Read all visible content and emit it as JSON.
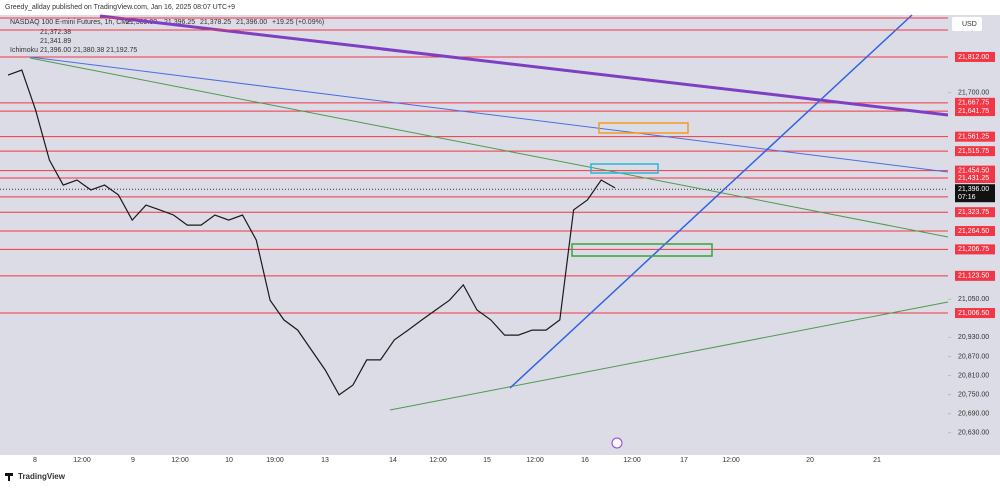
{
  "header": {
    "publisher": "Greedy_allday published on TradingView.com, Jan 16, 2025 08:07 UTC+9",
    "brand": "TradingView"
  },
  "legend": {
    "open": "21,389.00",
    "high": "21,396.25",
    "low": "21,378.25",
    "close": "21,396.00",
    "change": "+19.25 (+0.09%)",
    "ma1": "21,372.38",
    "ma2": "21,341.89",
    "ichimoku": "Ichimoku",
    "ichimoku_values": "21,396.00  21,380.38  21,192.75"
  },
  "chart_data": {
    "type": "line",
    "currency": "USD",
    "series": [
      {
        "name": "NASDAQ 100 E-mini Futures, 1h, CME",
        "color": "#1a1a1a",
        "values": [
          21755,
          21771,
          21645,
          21488,
          21409,
          21425,
          21394,
          21409,
          21378,
          21299,
          21346,
          21331,
          21315,
          21283,
          21283,
          21315,
          21299,
          21315,
          21236,
          21047,
          20985,
          20953,
          20890,
          20827,
          20749,
          20780,
          20859,
          20859,
          20922,
          20953,
          20985,
          21016,
          21047,
          21095,
          21016,
          20985,
          20937,
          20937,
          20953,
          20953,
          20985,
          21331,
          21362,
          21425,
          21400
        ]
      }
    ],
    "x_labels": [
      "8",
      "12:00",
      "9",
      "12:00",
      "10",
      "19:00",
      "13",
      "14",
      "12:00",
      "15",
      "12:00",
      "16",
      "12:00",
      "17",
      "12:00",
      "20",
      "21"
    ],
    "ylim": [
      20560,
      21944
    ],
    "yticks": [
      {
        "value": 20630,
        "label": "20,630.00"
      },
      {
        "value": 20690,
        "label": "20,690.00"
      },
      {
        "value": 20750,
        "label": "20,750.00"
      },
      {
        "value": 20810,
        "label": "20,810.00"
      },
      {
        "value": 20870,
        "label": "20,870.00"
      },
      {
        "value": 20930,
        "label": "20,930.00"
      },
      {
        "value": 21050,
        "label": "21,050.00"
      },
      {
        "value": 21700,
        "label": "21,700.00"
      }
    ],
    "levels": [
      {
        "value": 21812,
        "label": "21,812.00"
      },
      {
        "value": 21667.75,
        "label": "21,667.75"
      },
      {
        "value": 21641.75,
        "label": "21,641.75"
      },
      {
        "value": 21561.25,
        "label": "21,561.25"
      },
      {
        "value": 21515.75,
        "label": "21,515.75"
      },
      {
        "value": 21454.5,
        "label": "21,454.50"
      },
      {
        "value": 21431.25,
        "label": "21,431.25"
      },
      {
        "value": 21371.75,
        "label": "21,371.75"
      },
      {
        "value": 21323.75,
        "label": "21,323.75"
      },
      {
        "value": 21264.5,
        "label": "21,264.50"
      },
      {
        "value": 21206.75,
        "label": "21,206.75"
      },
      {
        "value": 21123.5,
        "label": "21,123.50"
      },
      {
        "value": 21006.5,
        "label": "21,006.50"
      }
    ],
    "level_color": "#f23645",
    "last": {
      "value": 21396,
      "label": "21,396.00"
    },
    "countdown": "07:16"
  }
}
